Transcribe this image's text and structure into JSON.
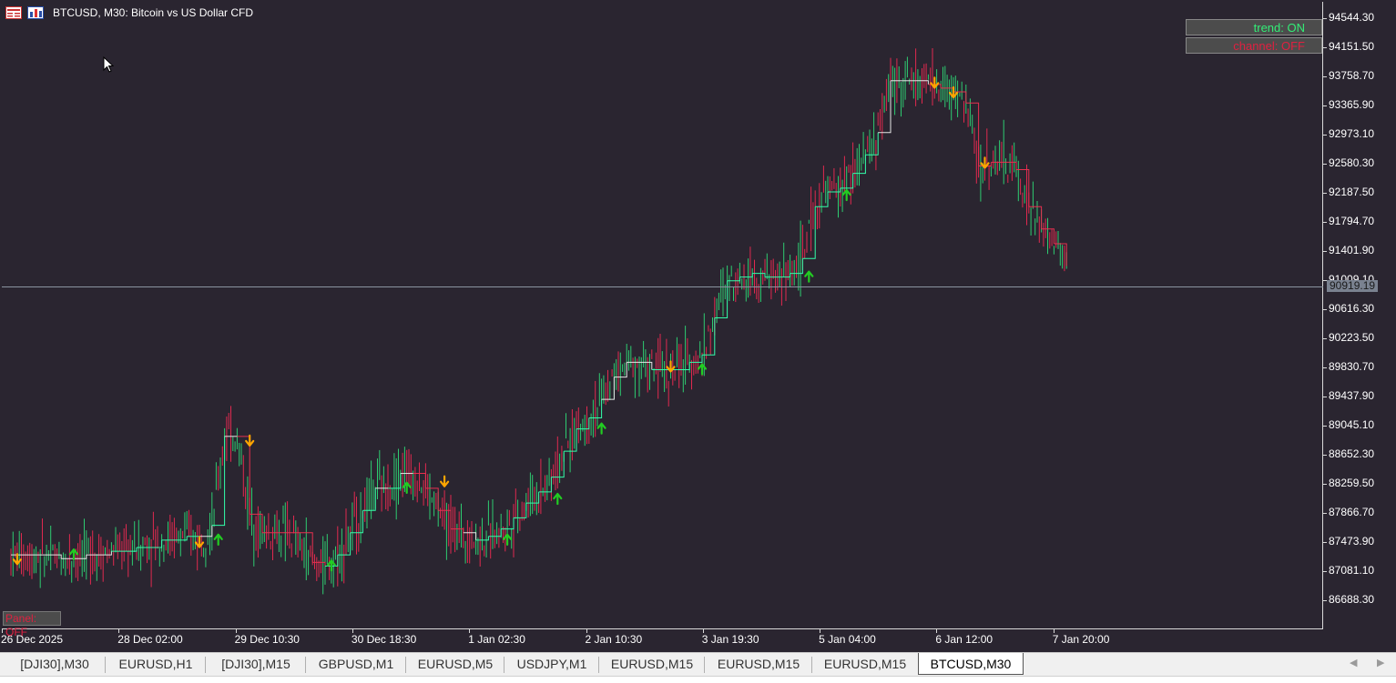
{
  "chart": {
    "title": "BTCUSD, M30:  Bitcoin vs US Dollar CFD",
    "current_price": "90919.19",
    "current_price_value": 90919.19,
    "colors": {
      "background": "#2a2530",
      "bull_candle": "#2ecc71",
      "bear_candle": "#e0294f",
      "trend_up_line": "#33ffaa",
      "trend_down_line": "#e8304f",
      "neutral_line": "#e6e6e6",
      "arrow_up": "#22cc22",
      "arrow_down": "#ffa500"
    },
    "price_labels": [
      "94544.30",
      "94151.50",
      "93758.70",
      "93365.90",
      "92973.10",
      "92580.30",
      "92187.50",
      "91794.70",
      "91401.90",
      "91009.10",
      "90616.30",
      "90223.50",
      "89830.70",
      "89437.90",
      "89045.10",
      "88652.30",
      "88259.50",
      "87866.70",
      "87473.90",
      "87081.10",
      "86688.30"
    ],
    "price_values": [
      94544.3,
      94151.5,
      93758.7,
      93365.9,
      92973.1,
      92580.3,
      92187.5,
      91794.7,
      91401.9,
      91009.1,
      90616.3,
      90223.5,
      89830.7,
      89437.9,
      89045.1,
      88652.3,
      88259.5,
      87866.7,
      87473.9,
      87081.1,
      86688.3
    ],
    "time_labels": [
      "26 Dec 2025",
      "28 Dec 02:00",
      "29 Dec 10:30",
      "30 Dec 18:30",
      "1 Jan 02:30",
      "2 Jan 10:30",
      "3 Jan 19:30",
      "5 Jan 04:00",
      "6 Jan 12:00",
      "7 Jan 20:00"
    ],
    "trend_points": [
      [
        0,
        87300
      ],
      [
        4,
        87300
      ],
      [
        8,
        87250
      ],
      [
        12,
        87300
      ],
      [
        16,
        87350
      ],
      [
        20,
        87400
      ],
      [
        24,
        87500
      ],
      [
        28,
        87550
      ],
      [
        30,
        87550
      ],
      [
        32,
        87700
      ],
      [
        34,
        88900
      ],
      [
        36,
        88900
      ],
      [
        38,
        87850
      ],
      [
        40,
        87600
      ],
      [
        44,
        87600
      ],
      [
        48,
        87200
      ],
      [
        50,
        87150
      ],
      [
        52,
        87300
      ],
      [
        54,
        87600
      ],
      [
        56,
        87900
      ],
      [
        58,
        88200
      ],
      [
        60,
        88200
      ],
      [
        62,
        88400
      ],
      [
        64,
        88400
      ],
      [
        66,
        88200
      ],
      [
        68,
        87900
      ],
      [
        70,
        87650
      ],
      [
        72,
        87600
      ],
      [
        74,
        87500
      ],
      [
        76,
        87550
      ],
      [
        78,
        87650
      ],
      [
        80,
        87800
      ],
      [
        82,
        88000
      ],
      [
        84,
        88150
      ],
      [
        86,
        88350
      ],
      [
        88,
        88700
      ],
      [
        90,
        89000
      ],
      [
        92,
        89150
      ],
      [
        94,
        89400
      ],
      [
        96,
        89700
      ],
      [
        98,
        89900
      ],
      [
        100,
        89900
      ],
      [
        102,
        89800
      ],
      [
        104,
        89800
      ],
      [
        106,
        89800
      ],
      [
        108,
        89900
      ],
      [
        110,
        90000
      ],
      [
        112,
        90500
      ],
      [
        114,
        91000
      ],
      [
        116,
        91050
      ],
      [
        118,
        91100
      ],
      [
        120,
        91050
      ],
      [
        122,
        91050
      ],
      [
        124,
        91100
      ],
      [
        126,
        91300
      ],
      [
        128,
        92000
      ],
      [
        130,
        92200
      ],
      [
        132,
        92250
      ],
      [
        134,
        92450
      ],
      [
        136,
        92700
      ],
      [
        138,
        93000
      ],
      [
        140,
        93700
      ],
      [
        142,
        93700
      ],
      [
        144,
        93700
      ],
      [
        146,
        93650
      ],
      [
        148,
        93600
      ],
      [
        150,
        93550
      ],
      [
        152,
        93400
      ],
      [
        154,
        92550
      ],
      [
        156,
        92600
      ],
      [
        158,
        92600
      ],
      [
        160,
        92500
      ],
      [
        162,
        92000
      ],
      [
        164,
        91700
      ],
      [
        166,
        91500
      ],
      [
        168,
        91200
      ]
    ],
    "trend_colors": [
      "neutral",
      "neutral",
      "neutral",
      "neutral",
      "up",
      "up",
      "up",
      "up",
      "neutral",
      "up",
      "neutral",
      "down",
      "down",
      "down",
      "down",
      "down",
      "up",
      "up",
      "up",
      "up",
      "neutral",
      "up",
      "neutral",
      "down",
      "down",
      "down",
      "down",
      "neutral",
      "up",
      "up",
      "up",
      "up",
      "up",
      "up",
      "up",
      "up",
      "up",
      "up",
      "neutral",
      "neutral",
      "neutral",
      "neutral",
      "up",
      "up",
      "up",
      "up",
      "up",
      "up",
      "up",
      "up",
      "up",
      "up",
      "up",
      "up",
      "up",
      "up",
      "up",
      "up",
      "up",
      "up",
      "neutral",
      "neutral",
      "neutral",
      "neutral",
      "down",
      "down",
      "down",
      "down",
      "down",
      "down",
      "down",
      "down",
      "down",
      "down",
      "down"
    ],
    "signals": [
      {
        "type": "down",
        "index": 1,
        "price": 87250
      },
      {
        "type": "up",
        "index": 10,
        "price": 87300
      },
      {
        "type": "down",
        "index": 30,
        "price": 87480
      },
      {
        "type": "up",
        "index": 33,
        "price": 87500
      },
      {
        "type": "down",
        "index": 38,
        "price": 88850
      },
      {
        "type": "up",
        "index": 51,
        "price": 87150
      },
      {
        "type": "up",
        "index": 63,
        "price": 88200
      },
      {
        "type": "down",
        "index": 69,
        "price": 88300
      },
      {
        "type": "up",
        "index": 79,
        "price": 87500
      },
      {
        "type": "up",
        "index": 87,
        "price": 88050
      },
      {
        "type": "up",
        "index": 94,
        "price": 89000
      },
      {
        "type": "down",
        "index": 105,
        "price": 89850
      },
      {
        "type": "up",
        "index": 110,
        "price": 89800
      },
      {
        "type": "up",
        "index": 127,
        "price": 91050
      },
      {
        "type": "up",
        "index": 133,
        "price": 92150
      },
      {
        "type": "down",
        "index": 147,
        "price": 93680
      },
      {
        "type": "down",
        "index": 150,
        "price": 93550
      },
      {
        "type": "down",
        "index": 155,
        "price": 92600
      }
    ]
  },
  "panel": {
    "trend_label": "trend: ON",
    "channel_label": "channel: OFF",
    "panel_label": "Panel: OFF"
  },
  "tabs": [
    {
      "label": "[DJI30],M30"
    },
    {
      "label": "EURUSD,H1"
    },
    {
      "label": "[DJI30],M15"
    },
    {
      "label": "GBPUSD,M1"
    },
    {
      "label": "EURUSD,M5"
    },
    {
      "label": "USDJPY,M1"
    },
    {
      "label": "EURUSD,M15"
    },
    {
      "label": "EURUSD,M15"
    },
    {
      "label": "EURUSD,M15"
    },
    {
      "label": "BTCUSD,M30",
      "active": true
    }
  ],
  "tab_scroll": {
    "left": "◀",
    "right": "▶"
  }
}
